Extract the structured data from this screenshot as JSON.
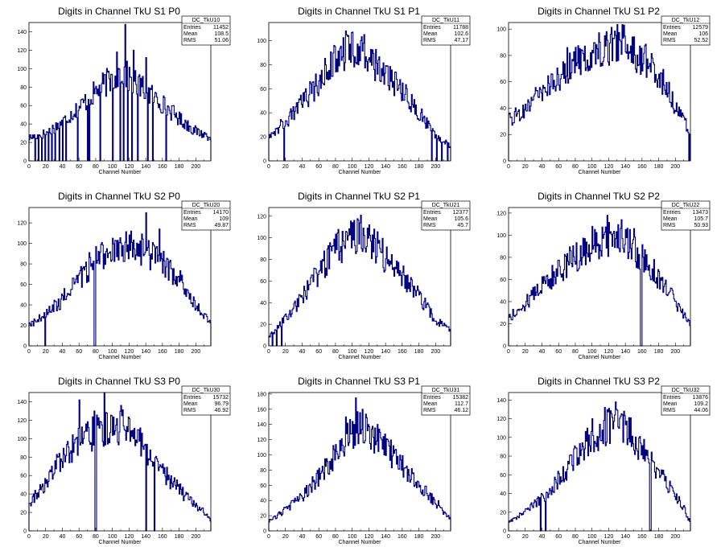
{
  "stats_labels": {
    "entries": "Entries",
    "mean": "Mean",
    "rms": "RMS"
  },
  "colors": {
    "line": "#000080",
    "axis": "#000000",
    "background": "#ffffff"
  },
  "chart_data": [
    {
      "type": "histogram",
      "title": "Digits in Channel TkU S1 P0",
      "xlabel": "Channel Number",
      "hist_name": "DC_TkU10",
      "entries": "11452",
      "mean": "108.5",
      "rms": "51.06",
      "xlim": [
        0,
        218
      ],
      "ylim": [
        0,
        150
      ],
      "xticks": [
        0,
        20,
        40,
        60,
        80,
        100,
        120,
        140,
        160,
        180,
        200
      ],
      "yticks": [
        0,
        20,
        40,
        60,
        80,
        100,
        120,
        140
      ],
      "profile": [
        [
          0,
          25
        ],
        [
          20,
          30
        ],
        [
          40,
          42
        ],
        [
          60,
          58
        ],
        [
          80,
          75
        ],
        [
          100,
          90
        ],
        [
          110,
          97
        ],
        [
          120,
          90
        ],
        [
          140,
          76
        ],
        [
          160,
          62
        ],
        [
          180,
          46
        ],
        [
          200,
          32
        ],
        [
          218,
          26
        ]
      ],
      "spikes": [
        [
          115,
          148
        ],
        [
          125,
          120
        ],
        [
          105,
          118
        ],
        [
          140,
          112
        ]
      ],
      "drops": [
        7,
        11,
        15,
        19,
        23,
        27,
        31,
        36,
        40,
        44,
        58,
        70,
        72,
        85,
        100,
        109,
        113,
        115,
        118,
        123,
        125,
        130,
        142,
        148,
        164
      ]
    },
    {
      "type": "histogram",
      "title": "Digits in Channel TkU S1 P1",
      "xlabel": "Channel Number",
      "hist_name": "DC_TkU11",
      "entries": "11788",
      "mean": "102.6",
      "rms": "47.17",
      "xlim": [
        0,
        218
      ],
      "ylim": [
        0,
        115
      ],
      "xticks": [
        0,
        20,
        40,
        60,
        80,
        100,
        120,
        140,
        160,
        180,
        200
      ],
      "yticks": [
        0,
        20,
        40,
        60,
        80,
        100
      ],
      "profile": [
        [
          0,
          22
        ],
        [
          20,
          32
        ],
        [
          40,
          48
        ],
        [
          60,
          65
        ],
        [
          80,
          85
        ],
        [
          100,
          93
        ],
        [
          110,
          92
        ],
        [
          120,
          86
        ],
        [
          140,
          72
        ],
        [
          160,
          58
        ],
        [
          180,
          40
        ],
        [
          200,
          22
        ],
        [
          218,
          12
        ]
      ],
      "spikes": [
        [
          100,
          107
        ],
        [
          92,
          108
        ],
        [
          110,
          100
        ],
        [
          78,
          96
        ]
      ],
      "drops": [
        18,
        195,
        201,
        207,
        214
      ]
    },
    {
      "type": "histogram",
      "title": "Digits in Channel TkU S1 P2",
      "xlabel": "Channel Number",
      "hist_name": "DC_TkU12",
      "entries": "12579",
      "mean": "106",
      "rms": "52.52",
      "xlim": [
        0,
        218
      ],
      "ylim": [
        0,
        105
      ],
      "xticks": [
        0,
        20,
        40,
        60,
        80,
        100,
        120,
        140,
        160,
        180,
        200
      ],
      "yticks": [
        0,
        20,
        40,
        60,
        80,
        100
      ],
      "profile": [
        [
          0,
          30
        ],
        [
          20,
          40
        ],
        [
          40,
          52
        ],
        [
          60,
          63
        ],
        [
          80,
          74
        ],
        [
          100,
          82
        ],
        [
          120,
          88
        ],
        [
          130,
          90
        ],
        [
          140,
          88
        ],
        [
          160,
          78
        ],
        [
          180,
          66
        ],
        [
          200,
          42
        ],
        [
          218,
          22
        ]
      ],
      "spikes": [
        [
          138,
          103
        ],
        [
          115,
          95
        ],
        [
          148,
          94
        ],
        [
          70,
          86
        ]
      ],
      "drops": [
        216
      ]
    },
    {
      "type": "histogram",
      "title": "Digits in Channel TkU S2 P0",
      "xlabel": "Channel Number",
      "hist_name": "DC_TkU20",
      "entries": "14170",
      "mean": "109",
      "rms": "49.87",
      "xlim": [
        0,
        218
      ],
      "ylim": [
        0,
        135
      ],
      "xticks": [
        0,
        20,
        40,
        60,
        80,
        100,
        120,
        140,
        160,
        180,
        200
      ],
      "yticks": [
        0,
        20,
        40,
        60,
        80,
        100,
        120
      ],
      "profile": [
        [
          0,
          20
        ],
        [
          20,
          30
        ],
        [
          40,
          45
        ],
        [
          60,
          65
        ],
        [
          80,
          85
        ],
        [
          100,
          92
        ],
        [
          120,
          96
        ],
        [
          140,
          94
        ],
        [
          160,
          80
        ],
        [
          180,
          65
        ],
        [
          200,
          40
        ],
        [
          218,
          22
        ]
      ],
      "spikes": [
        [
          140,
          130
        ],
        [
          122,
          112
        ],
        [
          100,
          105
        ],
        [
          156,
          114
        ]
      ],
      "drops": [
        19,
        78,
        79
      ]
    },
    {
      "type": "histogram",
      "title": "Digits in Channel TkU S2 P1",
      "xlabel": "Channel Number",
      "hist_name": "DC_TkU21",
      "entries": "12377",
      "mean": "105.6",
      "rms": "45.7",
      "xlim": [
        0,
        218
      ],
      "ylim": [
        0,
        128
      ],
      "xticks": [
        0,
        20,
        40,
        60,
        80,
        100,
        120,
        140,
        160,
        180,
        200
      ],
      "yticks": [
        0,
        20,
        40,
        60,
        80,
        100,
        120
      ],
      "profile": [
        [
          0,
          8
        ],
        [
          20,
          25
        ],
        [
          40,
          45
        ],
        [
          60,
          68
        ],
        [
          80,
          90
        ],
        [
          100,
          100
        ],
        [
          110,
          104
        ],
        [
          120,
          98
        ],
        [
          140,
          82
        ],
        [
          160,
          66
        ],
        [
          180,
          46
        ],
        [
          200,
          24
        ],
        [
          218,
          14
        ]
      ],
      "spikes": [
        [
          110,
          121
        ],
        [
          100,
          114
        ],
        [
          120,
          112
        ],
        [
          88,
          106
        ]
      ],
      "drops": [
        4,
        9,
        15
      ]
    },
    {
      "type": "histogram",
      "title": "Digits in Channel TkU S2 P2",
      "xlabel": "Channel Number",
      "hist_name": "DC_TkU22",
      "entries": "13473",
      "mean": "105.7",
      "rms": "50.93",
      "xlim": [
        0,
        218
      ],
      "ylim": [
        0,
        125
      ],
      "xticks": [
        0,
        20,
        40,
        60,
        80,
        100,
        120,
        140,
        160,
        180,
        200
      ],
      "yticks": [
        0,
        20,
        40,
        60,
        80,
        100,
        120
      ],
      "profile": [
        [
          0,
          25
        ],
        [
          20,
          38
        ],
        [
          40,
          55
        ],
        [
          60,
          68
        ],
        [
          80,
          80
        ],
        [
          100,
          90
        ],
        [
          120,
          96
        ],
        [
          140,
          94
        ],
        [
          160,
          82
        ],
        [
          180,
          62
        ],
        [
          200,
          40
        ],
        [
          218,
          18
        ]
      ],
      "spikes": [
        [
          118,
          118
        ],
        [
          135,
          114
        ],
        [
          100,
          108
        ],
        [
          150,
          106
        ]
      ],
      "drops": [
        158,
        159
      ]
    },
    {
      "type": "histogram",
      "title": "Digits in Channel TkU S3 P0",
      "xlabel": "Channel Number",
      "hist_name": "DC_TkU30",
      "entries": "15732",
      "mean": "96.79",
      "rms": "46.92",
      "xlim": [
        0,
        218
      ],
      "ylim": [
        0,
        150
      ],
      "xticks": [
        0,
        20,
        40,
        60,
        80,
        100,
        120,
        140,
        160,
        180,
        200
      ],
      "yticks": [
        0,
        20,
        40,
        60,
        80,
        100,
        120,
        140
      ],
      "profile": [
        [
          0,
          30
        ],
        [
          20,
          50
        ],
        [
          40,
          80
        ],
        [
          60,
          95
        ],
        [
          80,
          108
        ],
        [
          100,
          112
        ],
        [
          115,
          115
        ],
        [
          130,
          100
        ],
        [
          150,
          75
        ],
        [
          170,
          55
        ],
        [
          190,
          35
        ],
        [
          210,
          20
        ],
        [
          218,
          10
        ]
      ],
      "spikes": [
        [
          90,
          150
        ],
        [
          60,
          142
        ],
        [
          110,
          136
        ],
        [
          78,
          130
        ]
      ],
      "drops": [
        79,
        80,
        140,
        150
      ]
    },
    {
      "type": "histogram",
      "title": "Digits in Channel TkU S3 P1",
      "xlabel": "Channel Number",
      "hist_name": "DC_TkU31",
      "entries": "15382",
      "mean": "112.7",
      "rms": "46.12",
      "xlim": [
        0,
        218
      ],
      "ylim": [
        0,
        182
      ],
      "xticks": [
        0,
        20,
        40,
        60,
        80,
        100,
        120,
        140,
        160,
        180,
        200
      ],
      "yticks": [
        0,
        20,
        40,
        60,
        80,
        100,
        120,
        140,
        160,
        180
      ],
      "profile": [
        [
          0,
          12
        ],
        [
          20,
          28
        ],
        [
          40,
          45
        ],
        [
          60,
          70
        ],
        [
          80,
          100
        ],
        [
          100,
          130
        ],
        [
          110,
          138
        ],
        [
          120,
          128
        ],
        [
          140,
          110
        ],
        [
          160,
          85
        ],
        [
          180,
          62
        ],
        [
          200,
          38
        ],
        [
          218,
          16
        ]
      ],
      "spikes": [
        [
          104,
          175
        ],
        [
          112,
          160
        ],
        [
          92,
          150
        ],
        [
          130,
          140
        ]
      ],
      "drops": []
    },
    {
      "type": "histogram",
      "title": "Digits in Channel TkU S3 P2",
      "xlabel": "Channel Number",
      "hist_name": "DC_TkU32",
      "entries": "13876",
      "mean": "109.2",
      "rms": "44.06",
      "xlim": [
        0,
        218
      ],
      "ylim": [
        0,
        148
      ],
      "xticks": [
        0,
        20,
        40,
        60,
        80,
        100,
        120,
        140,
        160,
        180,
        200
      ],
      "yticks": [
        0,
        20,
        40,
        60,
        80,
        100,
        120,
        140
      ],
      "profile": [
        [
          0,
          10
        ],
        [
          20,
          20
        ],
        [
          40,
          35
        ],
        [
          60,
          55
        ],
        [
          80,
          78
        ],
        [
          100,
          100
        ],
        [
          120,
          112
        ],
        [
          130,
          115
        ],
        [
          150,
          100
        ],
        [
          170,
          75
        ],
        [
          190,
          50
        ],
        [
          210,
          25
        ],
        [
          218,
          8
        ]
      ],
      "spikes": [
        [
          128,
          138
        ],
        [
          115,
          132
        ],
        [
          138,
          128
        ],
        [
          100,
          120
        ]
      ],
      "drops": [
        38,
        44,
        169,
        170
      ]
    }
  ]
}
